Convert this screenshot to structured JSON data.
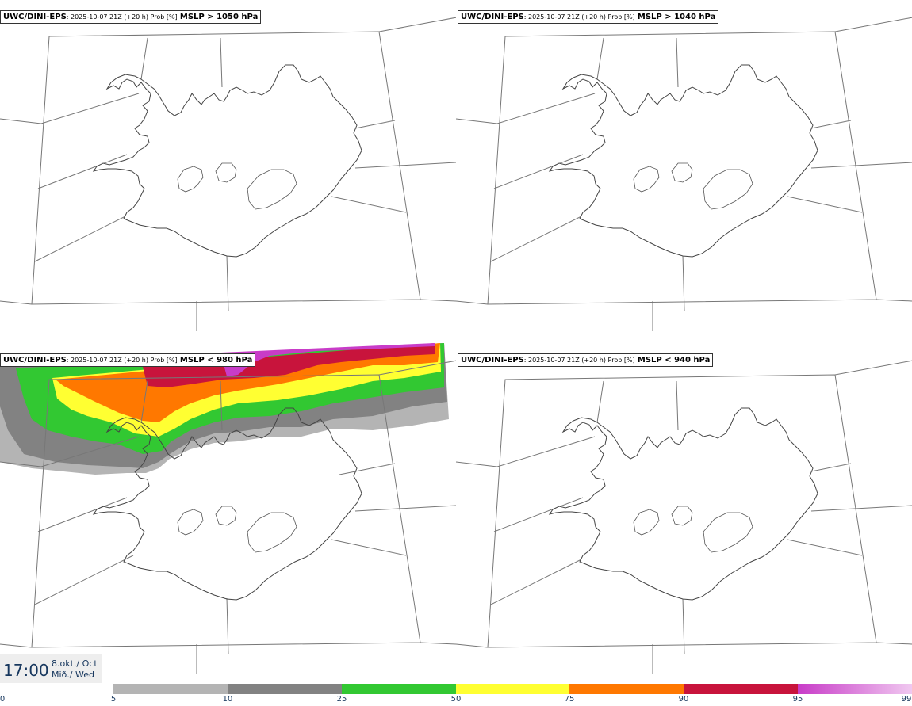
{
  "panels": [
    {
      "model": "UWC/DINI-EPS",
      "meta": ": 2025-10-07 21Z (+20 h) Prob [%]",
      "field": "MSLP > 1050 hPa"
    },
    {
      "model": "UWC/DINI-EPS",
      "meta": ": 2025-10-07 21Z (+20 h) Prob [%]",
      "field": "MSLP > 1040 hPa"
    },
    {
      "model": "UWC/DINI-EPS",
      "meta": ": 2025-10-07 21Z (+20 h) Prob [%]",
      "field": "MSLP < 980 hPa"
    },
    {
      "model": "UWC/DINI-EPS",
      "meta": ": 2025-10-07 21Z (+20 h) Prob [%]",
      "field": "MSLP < 940 hPa"
    }
  ],
  "valid_time": {
    "time": "17:00",
    "date_line1": "8.okt./ Oct",
    "date_line2": "Mið./ Wed"
  },
  "colorbar": {
    "ticks": [
      "0",
      "5",
      "10",
      "25",
      "50",
      "75",
      "90",
      "95",
      "99"
    ],
    "colors": [
      "#b4b4b4",
      "#828282",
      "#32c832",
      "#ffff32",
      "#ff7800",
      "#c8143c",
      "#c83cc8"
    ]
  }
}
